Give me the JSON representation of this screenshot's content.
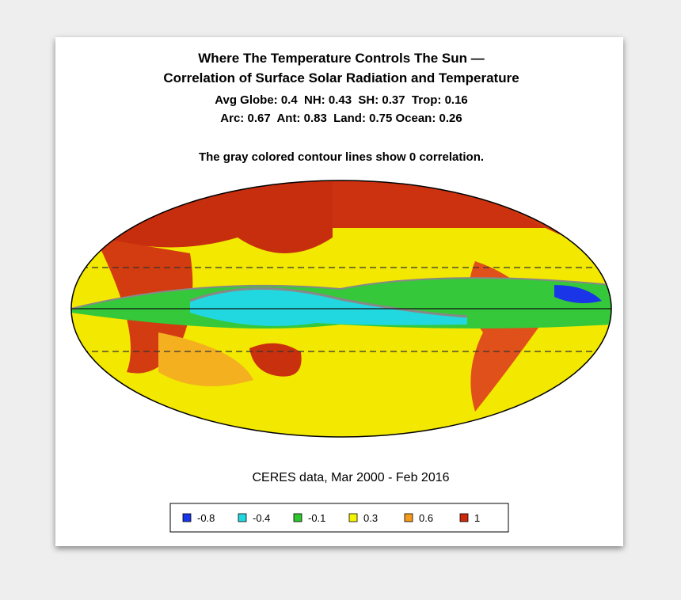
{
  "header": {
    "title": [
      "Where The Temperature Controls The Sun —",
      "Correlation of Surface Solar Radiation and Temperature"
    ],
    "stats": [
      "Avg Globe: 0.4  NH: 0.43  SH: 0.37  Trop: 0.16",
      "Arc: 0.67  Ant: 0.83  Land: 0.75 Ocean: 0.26"
    ],
    "note": "The gray colored contour lines show 0 correlation."
  },
  "caption": "CERES data, Mar 2000 - Feb 2016",
  "legend": [
    {
      "label": "-0.8",
      "color": "#1a35e8"
    },
    {
      "label": "-0.4",
      "color": "#22d8e0"
    },
    {
      "label": "-0.1",
      "color": "#2ec52e"
    },
    {
      "label": "0.3",
      "color": "#f5f500"
    },
    {
      "label": "0.6",
      "color": "#f59a1a"
    },
    {
      "label": "1",
      "color": "#cc2a0e"
    }
  ]
}
